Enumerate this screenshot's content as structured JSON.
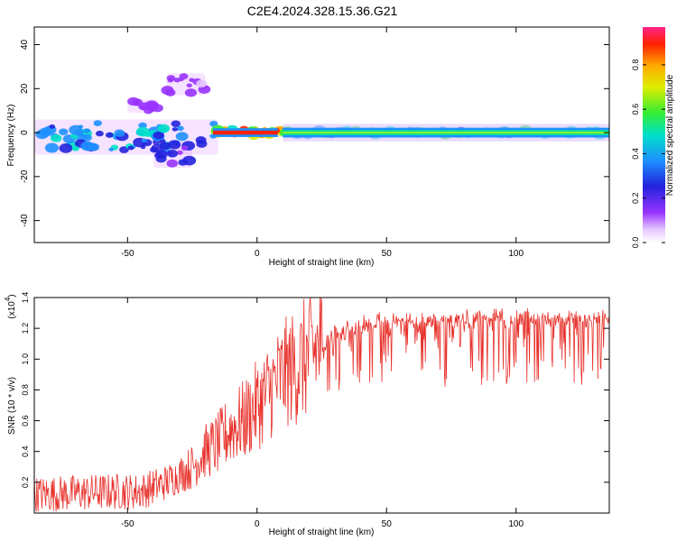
{
  "title": "C2E4.2024.328.15.36.G21",
  "colors": {
    "snr_line": "#e8302a",
    "axis": "#000000",
    "spectrum_halo": "#cc66ff",
    "spectrum_core": [
      "#3b1ccc",
      "#1e90ff",
      "#00e0c0",
      "#33ee33",
      "#ffee00",
      "#ff2200"
    ]
  },
  "chart_data": [
    {
      "type": "heatmap",
      "xlabel": "Height of straight line (km)",
      "ylabel": "Frequency (Hz)",
      "xlim": [
        -86,
        136
      ],
      "ylim": [
        -50,
        48
      ],
      "xticks": [
        -50,
        0,
        50,
        100
      ],
      "yticks": [
        -40,
        -20,
        0,
        20,
        40
      ],
      "colorbar": {
        "label": "Normalized spectral amplitude",
        "range": [
          0,
          0.97
        ],
        "ticks": [
          "0.0",
          "0.2",
          "0.4",
          "0.6",
          "0.8"
        ]
      },
      "features": [
        {
          "x_range": [
            -86,
            -15
          ],
          "freq_center": -2,
          "freq_spread": 8,
          "amplitude": 0.45
        },
        {
          "x_range": [
            -50,
            -38
          ],
          "freq_center": 12,
          "freq_spread": 3,
          "amplitude": 0.2
        },
        {
          "x_range": [
            -35,
            -20
          ],
          "freq_center": 22,
          "freq_spread": 5,
          "amplitude": 0.12
        },
        {
          "x_range": [
            -40,
            -25
          ],
          "freq_center": -10,
          "freq_spread": 6,
          "amplitude": 0.3
        },
        {
          "x_range": [
            -17,
            10
          ],
          "freq_center": 0,
          "freq_spread": 2,
          "amplitude": 0.95
        },
        {
          "x_range": [
            10,
            136
          ],
          "freq_center": 0,
          "freq_spread": 1.5,
          "amplitude": 0.55
        }
      ]
    },
    {
      "type": "line",
      "xlabel": "Height of straight line (km)",
      "ylabel": "SNR (10 * v/v)",
      "y_multiplier_label": "(x10",
      "y_multiplier_exp": "4",
      "y_multiplier_close": ")",
      "xlim": [
        -86,
        136
      ],
      "ylim": [
        0,
        1.4
      ],
      "xticks": [
        -50,
        0,
        50,
        100
      ],
      "yticks": [
        "0.2",
        "0.4",
        "0.6",
        "0.8",
        "1.0",
        "1.2",
        "1.4"
      ],
      "series": [
        {
          "x": [
            -86,
            -70,
            -55,
            -45,
            -35,
            -25,
            -20,
            -15,
            -10,
            -5,
            0,
            5,
            10,
            15,
            20,
            25,
            30,
            40,
            50,
            60,
            80,
            100,
            120,
            136
          ],
          "y_baseline": [
            0.12,
            0.13,
            0.14,
            0.14,
            0.2,
            0.3,
            0.4,
            0.45,
            0.55,
            0.6,
            0.7,
            0.8,
            0.9,
            0.95,
            1.02,
            1.1,
            1.2,
            1.25,
            1.28,
            1.28,
            1.29,
            1.3,
            1.3,
            1.3
          ]
        }
      ]
    }
  ]
}
